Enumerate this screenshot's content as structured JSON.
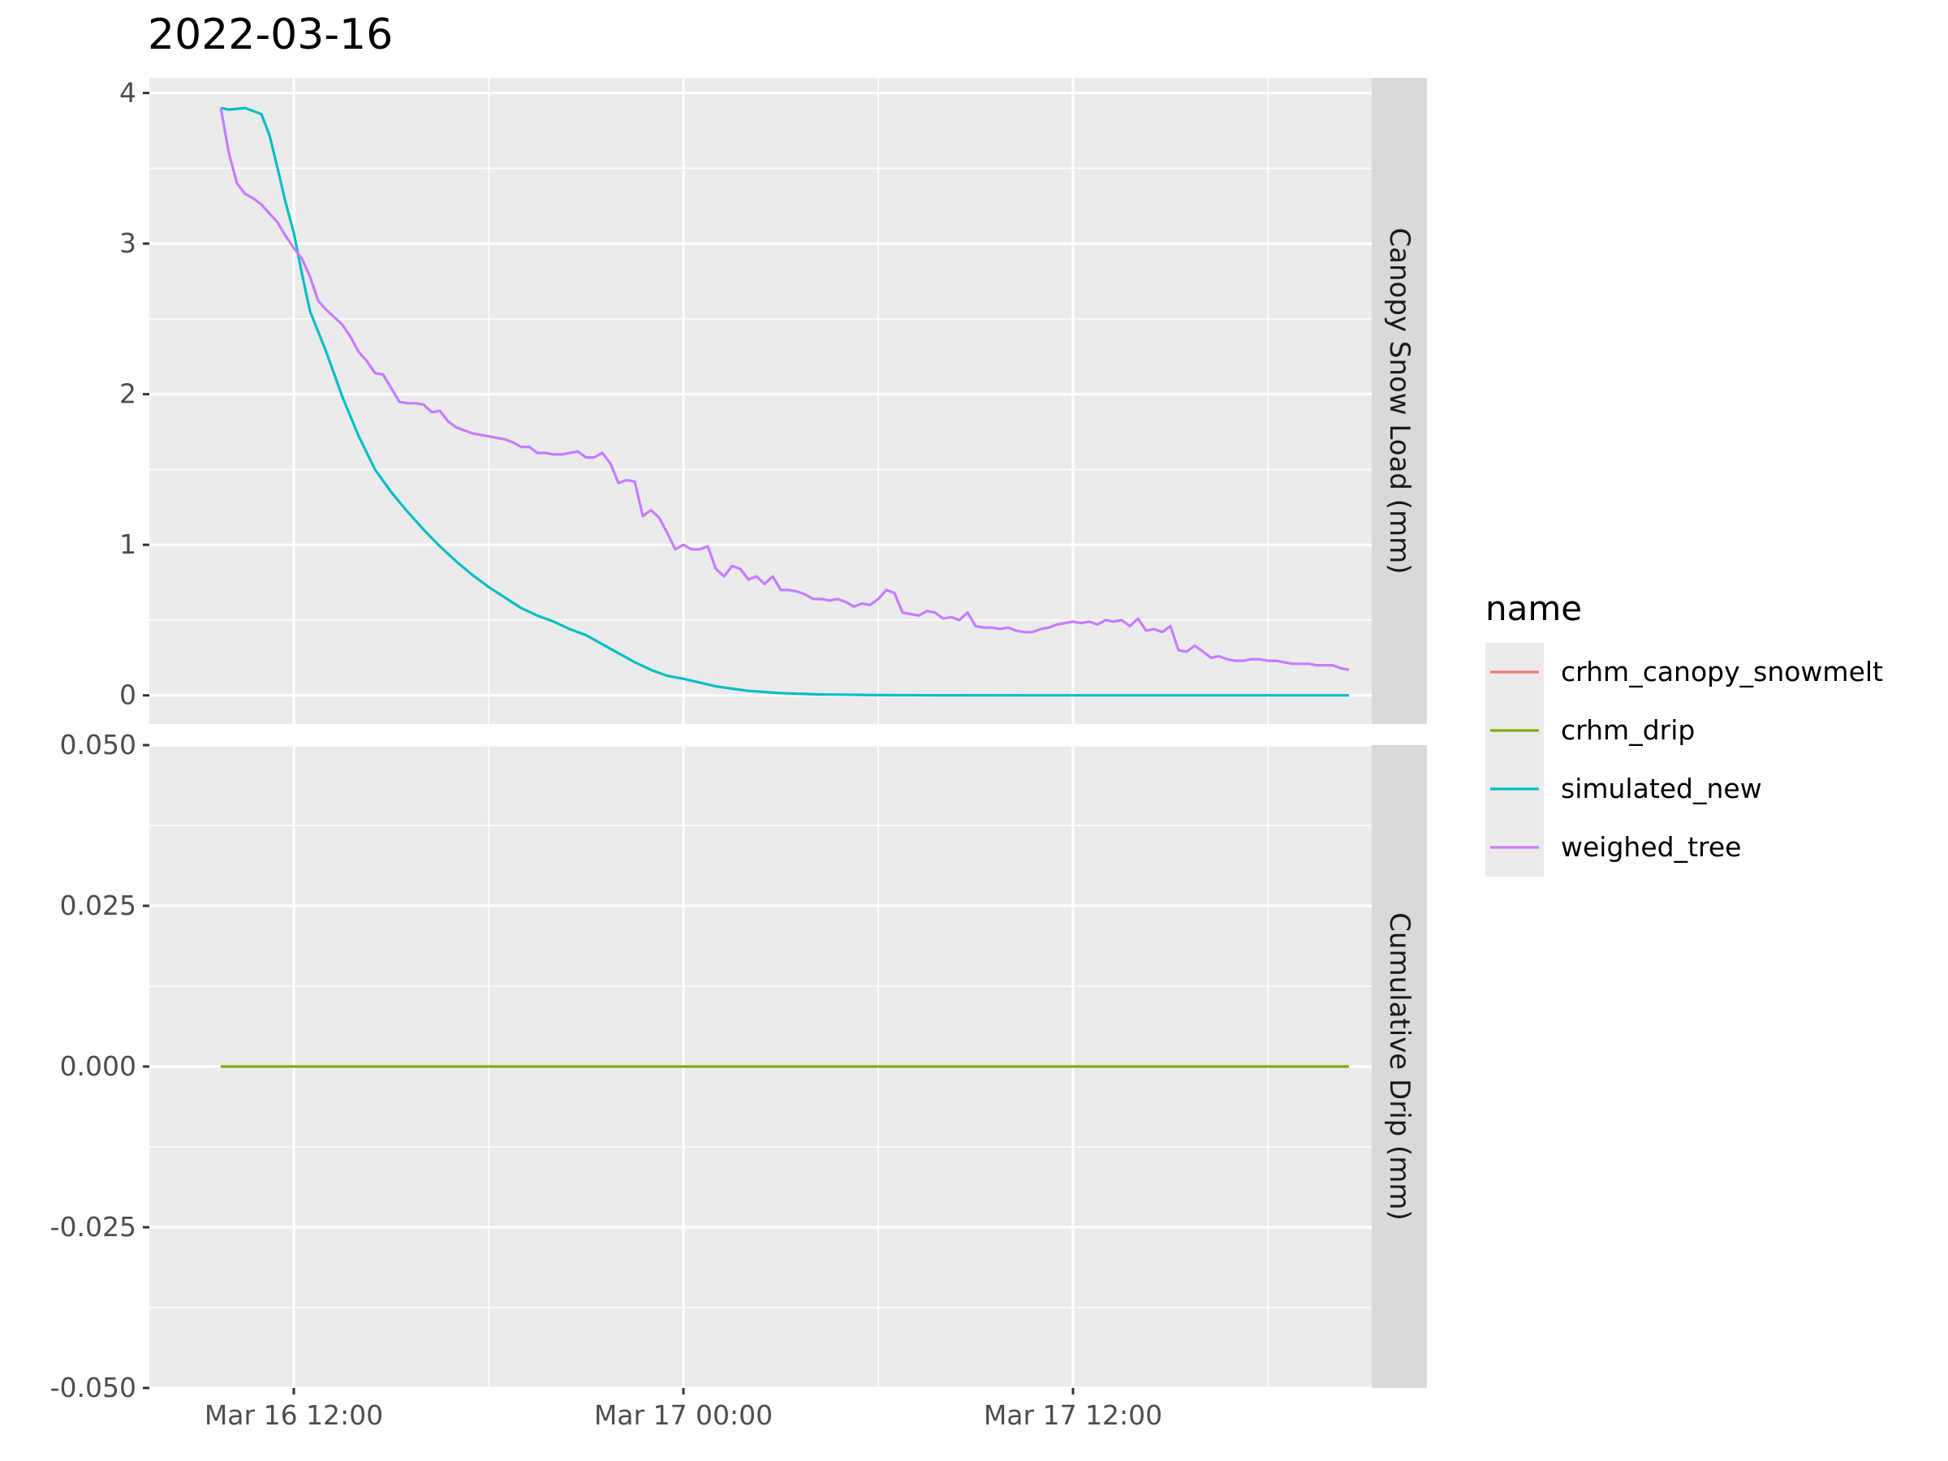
{
  "chart_data": {
    "type": "line",
    "title": "2022-03-16",
    "x_ticks": [
      "Mar 16 12:00",
      "Mar 17 00:00",
      "Mar 17 12:00"
    ],
    "x_tick_values": [
      12,
      24,
      36
    ],
    "x_unit": "hours since 2022-03-16 00:00",
    "xlim": [
      7.55,
      45.2
    ],
    "legend": {
      "title": "name",
      "position": "right",
      "entries": [
        {
          "name": "crhm_canopy_snowmelt",
          "color": "#F8766D"
        },
        {
          "name": "crhm_drip",
          "color": "#7CAE00"
        },
        {
          "name": "simulated_new",
          "color": "#00BFC4"
        },
        {
          "name": "weighed_tree",
          "color": "#C77CFF"
        }
      ]
    },
    "panels": [
      {
        "strip_label": "Canopy Snow Load (mm)",
        "ylim": [
          -0.19,
          4.1
        ],
        "y_ticks": [
          0,
          1,
          2,
          3,
          4
        ],
        "y_tick_labels": [
          "0",
          "1",
          "2",
          "3",
          "4"
        ],
        "series": [
          {
            "name": "simulated_new",
            "color": "#00BFC4",
            "x": [
              9.75,
              10.0,
              10.5,
              11.0,
              11.25,
              11.5,
              11.75,
              12.0,
              12.25,
              12.5,
              13.0,
              13.5,
              14.0,
              14.5,
              15.0,
              15.5,
              16.0,
              16.5,
              17.0,
              17.5,
              18.0,
              18.5,
              19.0,
              19.5,
              20.0,
              20.5,
              21.0,
              21.5,
              22.0,
              22.5,
              23.0,
              23.5,
              24.0,
              25.0,
              26.0,
              27.0,
              28.0,
              30.0,
              32.0,
              36.0,
              40.0,
              44.5
            ],
            "y": [
              3.9,
              3.89,
              3.9,
              3.86,
              3.72,
              3.5,
              3.27,
              3.07,
              2.8,
              2.55,
              2.28,
              1.98,
              1.72,
              1.5,
              1.35,
              1.22,
              1.1,
              0.99,
              0.89,
              0.8,
              0.72,
              0.65,
              0.58,
              0.53,
              0.49,
              0.44,
              0.4,
              0.34,
              0.28,
              0.22,
              0.17,
              0.13,
              0.11,
              0.06,
              0.03,
              0.015,
              0.007,
              0.002,
              0.001,
              0.0,
              0.0,
              0.0
            ]
          },
          {
            "name": "weighed_tree",
            "color": "#C77CFF",
            "x": [
              9.75,
              10.0,
              10.25,
              10.5,
              10.75,
              11.0,
              11.25,
              11.5,
              11.75,
              12.0,
              12.25,
              12.5,
              12.75,
              13.0,
              13.25,
              13.5,
              13.75,
              14.0,
              14.25,
              14.5,
              14.75,
              15.0,
              15.25,
              15.5,
              15.75,
              16.0,
              16.25,
              16.5,
              16.75,
              17.0,
              17.25,
              17.5,
              17.75,
              18.0,
              18.25,
              18.5,
              18.75,
              19.0,
              19.25,
              19.5,
              19.75,
              20.0,
              20.25,
              20.5,
              20.75,
              21.0,
              21.25,
              21.5,
              21.75,
              22.0,
              22.25,
              22.5,
              22.75,
              23.0,
              23.25,
              23.5,
              23.75,
              24.0,
              24.25,
              24.5,
              24.75,
              25.0,
              25.25,
              25.5,
              25.75,
              26.0,
              26.25,
              26.5,
              26.75,
              27.0,
              27.25,
              27.5,
              27.75,
              28.0,
              28.25,
              28.5,
              28.75,
              29.0,
              29.25,
              29.5,
              29.75,
              30.0,
              30.25,
              30.5,
              30.75,
              31.0,
              31.25,
              31.5,
              31.75,
              32.0,
              32.25,
              32.5,
              32.75,
              33.0,
              33.25,
              33.5,
              33.75,
              34.0,
              34.25,
              34.5,
              34.75,
              35.0,
              35.25,
              35.5,
              35.75,
              36.0,
              36.25,
              36.5,
              36.75,
              37.0,
              37.25,
              37.5,
              37.75,
              38.0,
              38.25,
              38.5,
              38.75,
              39.0,
              39.25,
              39.5,
              39.75,
              40.0,
              40.25,
              40.5,
              40.75,
              41.0,
              41.25,
              41.5,
              41.75,
              42.0,
              42.25,
              42.5,
              42.75,
              43.0,
              43.25,
              43.5,
              43.75,
              44.0,
              44.25,
              44.5
            ],
            "y": [
              3.9,
              3.6,
              3.4,
              3.33,
              3.3,
              3.26,
              3.2,
              3.14,
              3.05,
              2.97,
              2.9,
              2.78,
              2.62,
              2.56,
              2.51,
              2.46,
              2.38,
              2.28,
              2.22,
              2.14,
              2.13,
              2.04,
              1.95,
              1.94,
              1.94,
              1.93,
              1.88,
              1.89,
              1.82,
              1.78,
              1.76,
              1.74,
              1.73,
              1.72,
              1.71,
              1.7,
              1.68,
              1.65,
              1.65,
              1.61,
              1.61,
              1.6,
              1.6,
              1.61,
              1.62,
              1.58,
              1.58,
              1.61,
              1.54,
              1.41,
              1.43,
              1.42,
              1.19,
              1.23,
              1.18,
              1.08,
              0.97,
              1.0,
              0.97,
              0.97,
              0.99,
              0.84,
              0.79,
              0.86,
              0.84,
              0.77,
              0.79,
              0.74,
              0.79,
              0.7,
              0.7,
              0.69,
              0.67,
              0.64,
              0.64,
              0.63,
              0.64,
              0.62,
              0.59,
              0.61,
              0.6,
              0.64,
              0.7,
              0.68,
              0.55,
              0.54,
              0.53,
              0.56,
              0.55,
              0.51,
              0.52,
              0.5,
              0.55,
              0.46,
              0.45,
              0.45,
              0.44,
              0.45,
              0.43,
              0.42,
              0.42,
              0.44,
              0.45,
              0.47,
              0.48,
              0.49,
              0.48,
              0.49,
              0.47,
              0.5,
              0.49,
              0.5,
              0.46,
              0.51,
              0.43,
              0.44,
              0.42,
              0.46,
              0.3,
              0.29,
              0.33,
              0.29,
              0.25,
              0.26,
              0.24,
              0.23,
              0.23,
              0.24,
              0.24,
              0.23,
              0.23,
              0.22,
              0.21,
              0.21,
              0.21,
              0.2,
              0.2,
              0.2,
              0.18,
              0.17
            ]
          }
        ]
      },
      {
        "strip_label": "Cumulative Drip (mm)",
        "ylim": [
          -0.05,
          0.05
        ],
        "y_ticks": [
          -0.05,
          -0.025,
          0,
          0.025,
          0.05
        ],
        "y_tick_labels": [
          "-0.050",
          "-0.025",
          "0.000",
          "0.025",
          "0.050"
        ],
        "series": [
          {
            "name": "crhm_drip",
            "color": "#7CAE00",
            "x": [
              9.75,
              44.5
            ],
            "y": [
              0.0,
              0.0
            ]
          }
        ]
      }
    ],
    "grid": true
  }
}
